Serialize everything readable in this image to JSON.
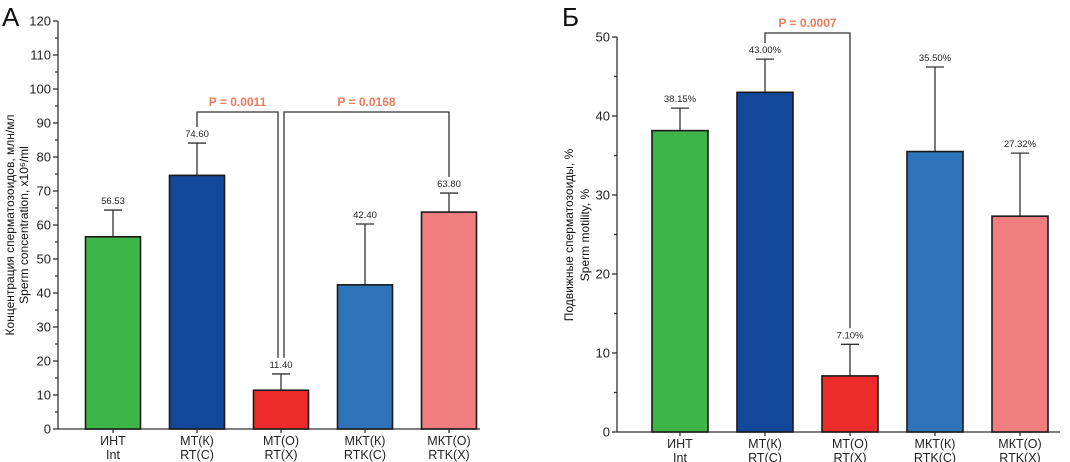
{
  "chart_data": [
    {
      "panel": "А",
      "type": "bar",
      "title": "",
      "xlabel": "",
      "ylabel": "Концентрация сперматозоидов, млн/мл",
      "ylabel2": "Sperm concentration, x10⁶/ml",
      "ylim": [
        0,
        120
      ],
      "yticks": [
        0,
        10,
        20,
        30,
        40,
        50,
        60,
        70,
        80,
        90,
        100,
        110,
        120
      ],
      "categories": [
        {
          "line1": "ИНТ",
          "line2": "Int"
        },
        {
          "line1": "МТ(К)",
          "line2": "RT(C)"
        },
        {
          "line1": "МТ(О)",
          "line2": "RT(X)"
        },
        {
          "line1": "МКТ(К)",
          "line2": "RTK(C)"
        },
        {
          "line1": "МКТ(О)",
          "line2": "RTK(X)"
        }
      ],
      "values": [
        56.53,
        74.6,
        11.4,
        42.4,
        63.8
      ],
      "value_labels": [
        "56.53",
        "74.60",
        "11.40",
        "42.40",
        "63.80"
      ],
      "error_upper": [
        64.4,
        84.1,
        16.2,
        60.3,
        69.4
      ],
      "colors": [
        "#3db548",
        "#12479a",
        "#ed2b2a",
        "#2f73bb",
        "#f07e80"
      ],
      "grid": false,
      "comparisons": [
        {
          "from": 1,
          "to": 2,
          "label": "P = 0.0011"
        },
        {
          "from": 2,
          "to": 4,
          "label": "P = 0.0168"
        }
      ]
    },
    {
      "panel": "Б",
      "type": "bar",
      "title": "",
      "xlabel": "",
      "ylabel": "Подвижные сперматозоиды, %",
      "ylabel2": "Sperm motility, %",
      "ylim": [
        0,
        50
      ],
      "yticks": [
        0,
        10,
        20,
        30,
        40,
        50
      ],
      "categories": [
        {
          "line1": "ИНТ",
          "line2": "Int"
        },
        {
          "line1": "МТ(К)",
          "line2": "RT(C)"
        },
        {
          "line1": "МТ(О)",
          "line2": "RT(X)"
        },
        {
          "line1": "МКТ(К)",
          "line2": "RTK(C)"
        },
        {
          "line1": "МКТ(О)",
          "line2": "RTK(X)"
        }
      ],
      "values": [
        38.15,
        43.0,
        7.1,
        35.5,
        27.32
      ],
      "value_labels": [
        "38.15%",
        "43.00%",
        "7.10%",
        "35.50%",
        "27.32%"
      ],
      "error_upper": [
        41.0,
        47.2,
        11.1,
        46.2,
        35.3
      ],
      "colors": [
        "#3db548",
        "#12479a",
        "#ed2b2a",
        "#2f73bb",
        "#f07e80"
      ],
      "grid": false,
      "comparisons": [
        {
          "from": 1,
          "to": 2,
          "label": "P = 0.0007"
        }
      ]
    }
  ]
}
